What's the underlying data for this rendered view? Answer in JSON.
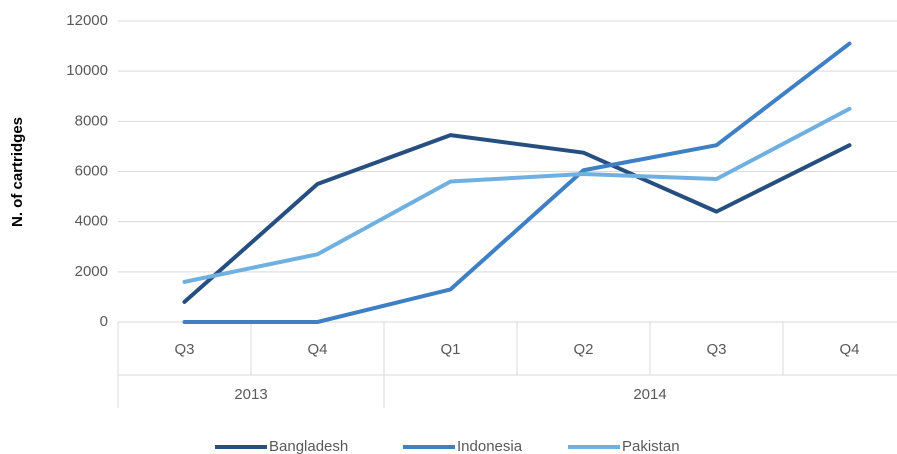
{
  "chart_data": {
    "type": "line",
    "y_label": "N. of cartridges",
    "categories": [
      "Q3",
      "Q4",
      "Q1",
      "Q2",
      "Q3",
      "Q4"
    ],
    "category_groups": [
      "2013",
      "2013",
      "2014",
      "2014",
      "2014",
      "2014"
    ],
    "series": [
      {
        "name": "Bangladesh",
        "color": "#264f80",
        "values": [
          800,
          5500,
          7450,
          6750,
          4400,
          7050
        ]
      },
      {
        "name": "Indonesia",
        "color": "#3f7fc4",
        "values": [
          0,
          0,
          1300,
          6050,
          7050,
          11100
        ]
      },
      {
        "name": "Pakistan",
        "color": "#6fb0e0",
        "values": [
          1600,
          2700,
          5600,
          5900,
          5700,
          8500
        ]
      }
    ],
    "ylim": [
      0,
      12000
    ],
    "yticks": [
      0,
      2000,
      4000,
      6000,
      8000,
      10000,
      12000
    ],
    "grid": true,
    "legend": "bottom"
  }
}
